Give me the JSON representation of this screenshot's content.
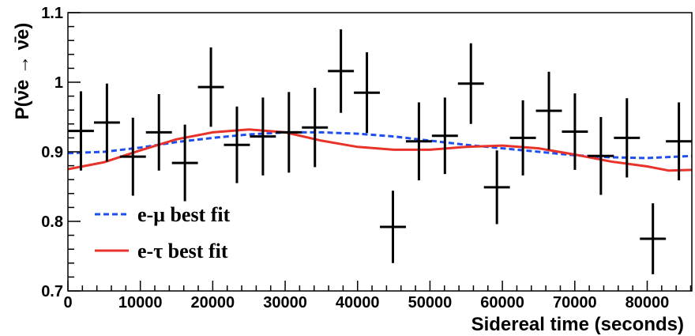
{
  "chart_data": {
    "type": "scatter",
    "xlabel": "Sidereal time (seconds)",
    "ylabel": "P(ν̄e → ν̄e)",
    "xlim": [
      0,
      86164
    ],
    "ylim": [
      0.7,
      1.1
    ],
    "x_ticks": [
      0,
      10000,
      20000,
      30000,
      40000,
      50000,
      60000,
      70000,
      80000
    ],
    "x_tick_labels": [
      "0",
      "10000",
      "20000",
      "30000",
      "40000",
      "50000",
      "60000",
      "70000",
      "80000"
    ],
    "y_ticks": [
      0.7,
      0.8,
      0.9,
      1.0,
      1.1
    ],
    "y_tick_labels": [
      "0.7",
      "0.8",
      "0.9",
      "1",
      "1.1"
    ],
    "grid": false,
    "legend_position": "bottom-left",
    "data_points": {
      "x": [
        1795,
        5386,
        8976,
        12567,
        16157,
        19748,
        23338,
        26929,
        30519,
        34110,
        37700,
        41291,
        44881,
        48472,
        52062,
        55653,
        59243,
        62834,
        66424,
        70015,
        73605,
        77196,
        80786,
        84377
      ],
      "y": [
        0.93,
        0.942,
        0.893,
        0.928,
        0.884,
        0.993,
        0.91,
        0.922,
        0.928,
        0.935,
        1.016,
        0.985,
        0.792,
        0.915,
        0.923,
        0.998,
        0.849,
        0.92,
        0.959,
        0.929,
        0.894,
        0.92,
        0.775,
        0.915
      ],
      "yerr": [
        0.057,
        0.056,
        0.056,
        0.055,
        0.055,
        0.057,
        0.055,
        0.056,
        0.058,
        0.057,
        0.06,
        0.058,
        0.052,
        0.056,
        0.055,
        0.058,
        0.053,
        0.054,
        0.056,
        0.055,
        0.056,
        0.057,
        0.051,
        0.056
      ],
      "xerr": 1795
    },
    "series": [
      {
        "name": "e-μ best fit",
        "color": "#1f4ff0",
        "style": "dashed",
        "x": [
          0,
          5000,
          10000,
          15000,
          20000,
          25000,
          30000,
          35000,
          40000,
          45000,
          50000,
          55000,
          60000,
          65000,
          70000,
          75000,
          80000,
          86164
        ],
        "y": [
          0.898,
          0.9,
          0.906,
          0.914,
          0.92,
          0.925,
          0.928,
          0.928,
          0.926,
          0.922,
          0.916,
          0.91,
          0.905,
          0.9,
          0.895,
          0.892,
          0.891,
          0.894
        ]
      },
      {
        "name": "e-τ best fit",
        "color": "#e8332b",
        "style": "solid",
        "x": [
          0,
          5000,
          10000,
          15000,
          20000,
          25000,
          30000,
          35000,
          40000,
          45000,
          50000,
          55000,
          60000,
          65000,
          70000,
          75000,
          80000,
          83000,
          86164
        ],
        "y": [
          0.875,
          0.885,
          0.902,
          0.918,
          0.928,
          0.932,
          0.928,
          0.916,
          0.907,
          0.903,
          0.903,
          0.907,
          0.909,
          0.905,
          0.896,
          0.886,
          0.879,
          0.873,
          0.874
        ]
      }
    ]
  }
}
